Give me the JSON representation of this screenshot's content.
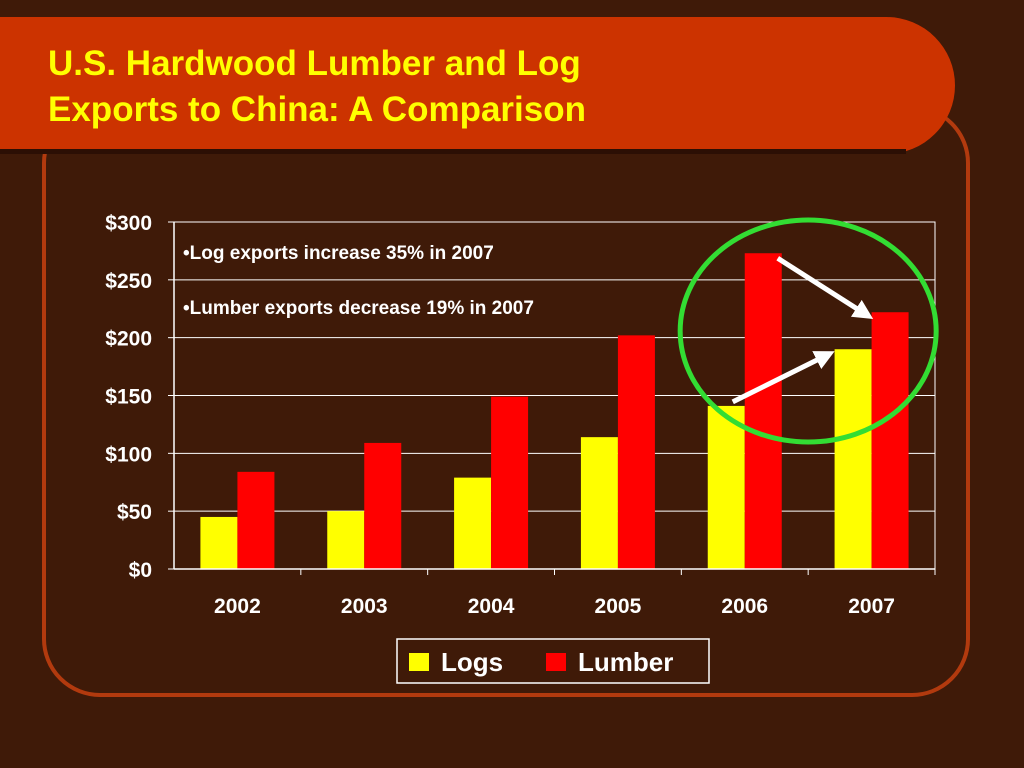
{
  "slide": {
    "title": "U.S. Hardwood Lumber and Log\nExports to China:  A Comparison"
  },
  "colors": {
    "background": "#3f1a08",
    "banner": "#cc3300",
    "frame": "#b23a0e",
    "title": "#ffff00",
    "logs": "#ffff00",
    "lumber": "#ff0000",
    "highlight_circle": "#33dd33",
    "arrows": "#ffffff"
  },
  "chart_data": {
    "type": "bar",
    "categories": [
      "2002",
      "2003",
      "2004",
      "2005",
      "2006",
      "2007"
    ],
    "series": [
      {
        "name": "Logs",
        "values": [
          45,
          50,
          79,
          114,
          141,
          190
        ]
      },
      {
        "name": "Lumber",
        "values": [
          84,
          109,
          149,
          202,
          273,
          222
        ]
      }
    ],
    "ylim": [
      0,
      300
    ],
    "y_ticks": [
      0,
      50,
      100,
      150,
      200,
      250,
      300
    ],
    "y_tick_labels": [
      "$0",
      "$50",
      "$100",
      "$150",
      "$200",
      "$250",
      "$300"
    ],
    "grid": true,
    "legend_position": "bottom",
    "annotations": [
      "•Log exports increase 35% in 2007",
      "•Lumber exports decrease 19% in 2007"
    ],
    "highlight": "2006–2007 circled",
    "arrows": [
      {
        "series": "Lumber",
        "from": "2006",
        "to": "2007"
      },
      {
        "series": "Logs",
        "from": "2006",
        "to": "2007"
      }
    ]
  }
}
